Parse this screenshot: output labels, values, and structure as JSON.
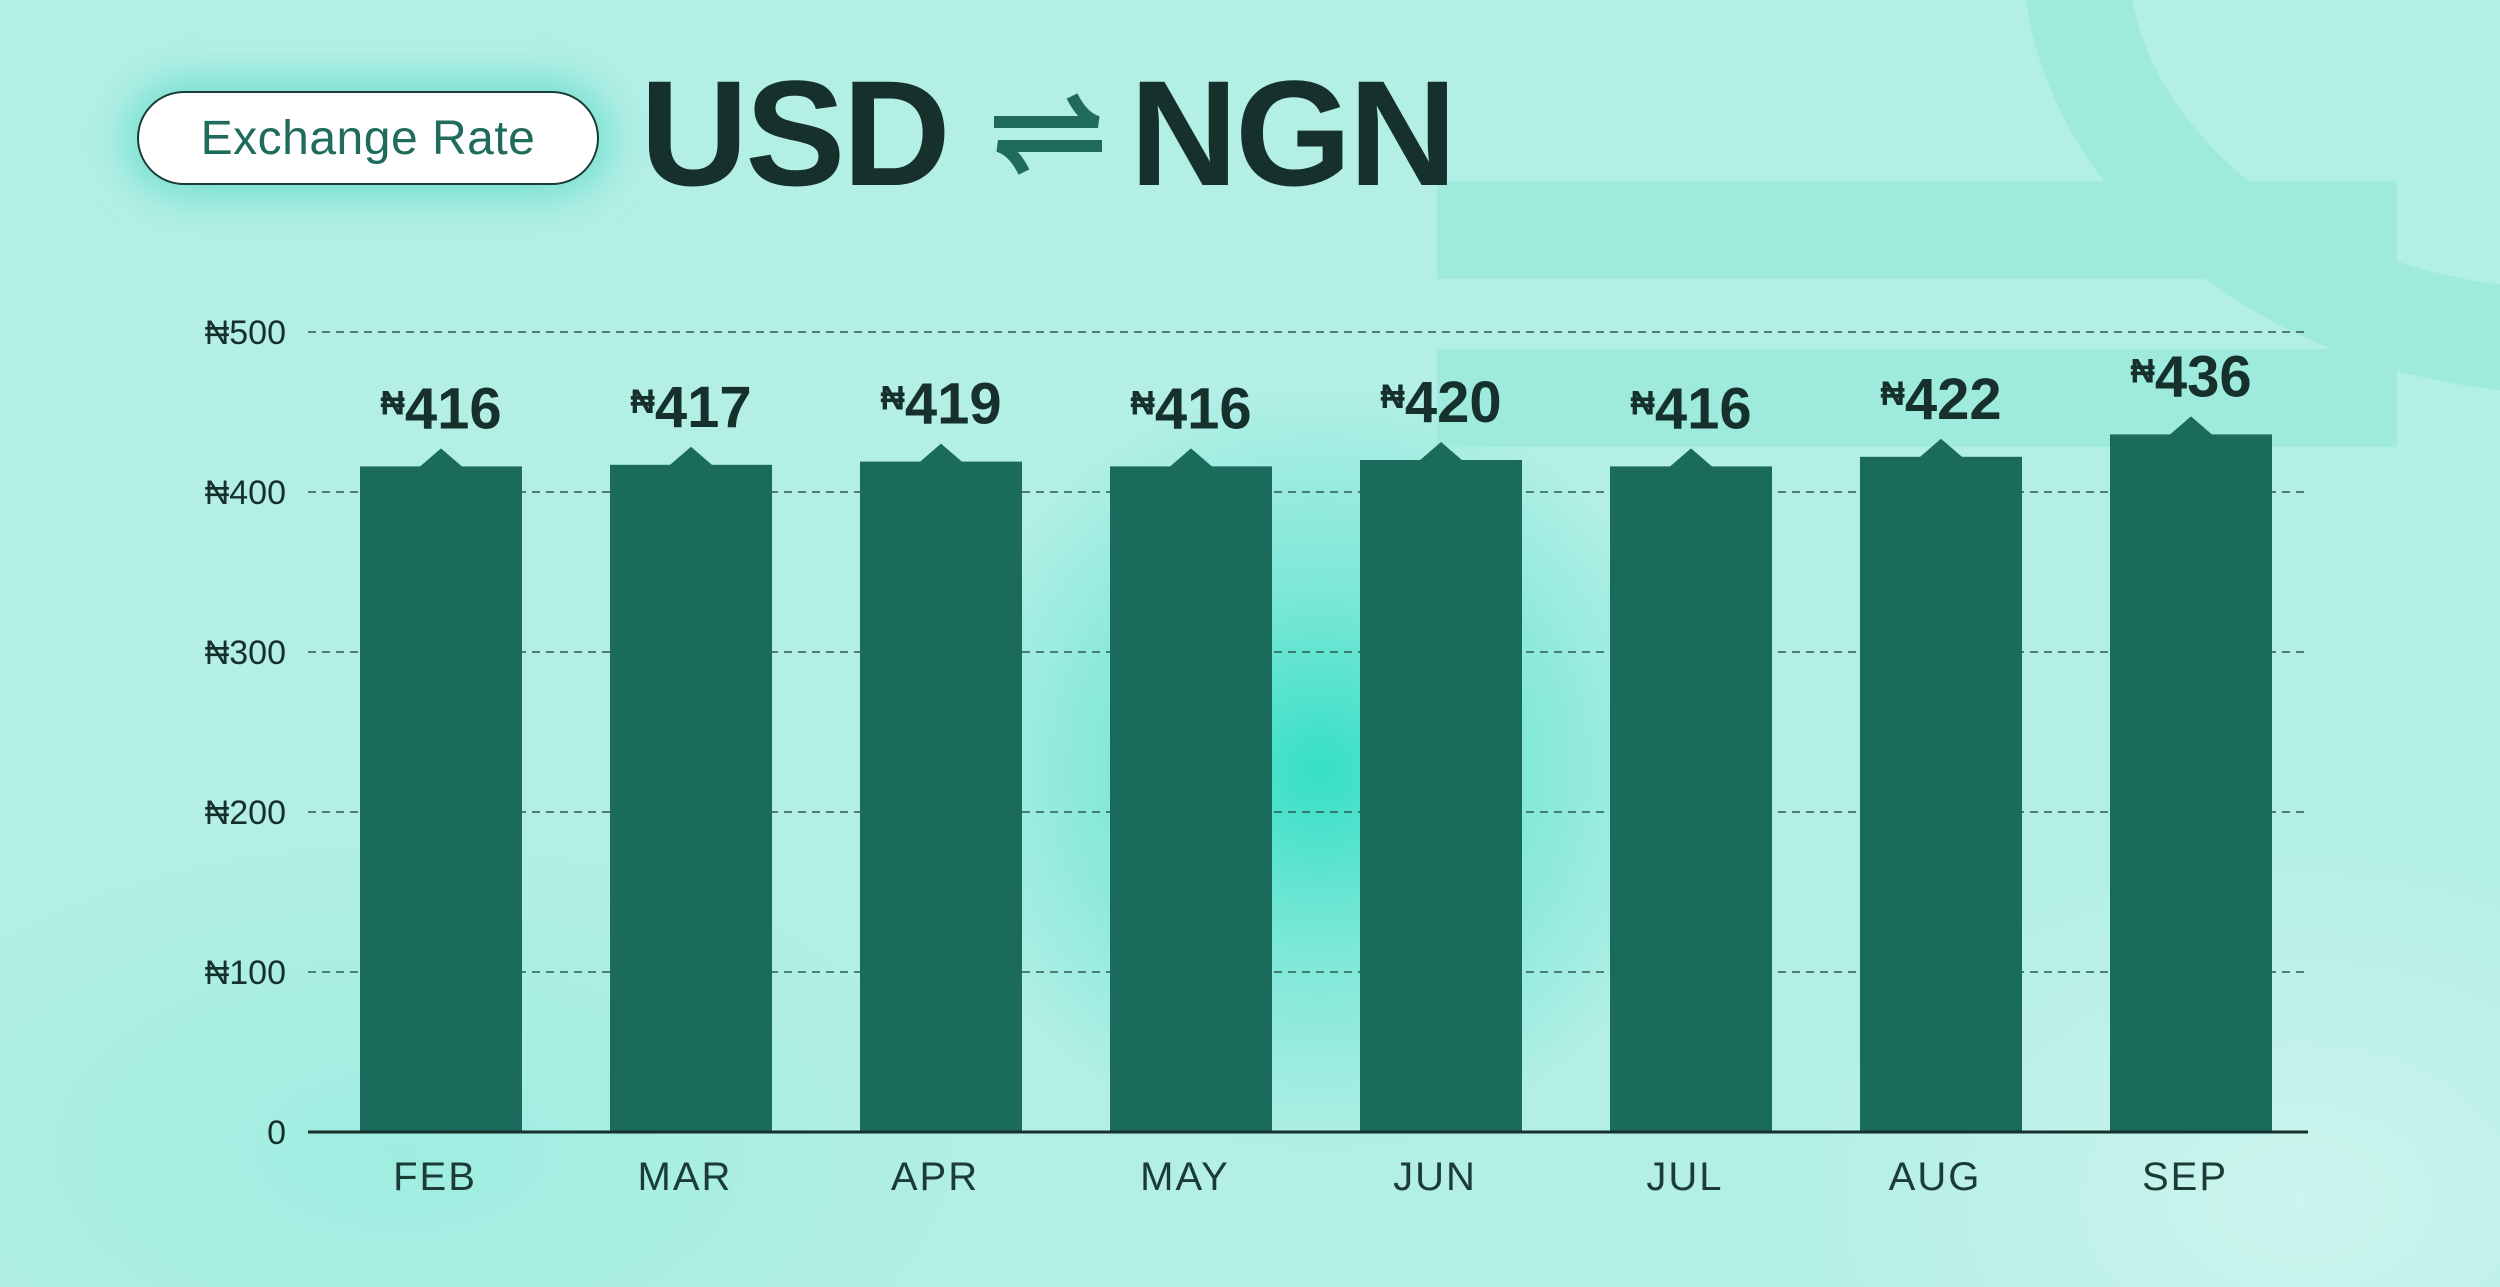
{
  "header": {
    "badge": "Exchange Rate",
    "from": "USD",
    "to": "NGN"
  },
  "colors": {
    "background": "#b4efe6",
    "bar": "#1b6b5c",
    "text": "#16302c",
    "accent": "#1f6b5c"
  },
  "icons": {
    "swap": "swap-arrows-icon"
  },
  "chart_data": {
    "type": "bar",
    "categories": [
      "FEB",
      "MAR",
      "APR",
      "MAY",
      "JUN",
      "JUL",
      "AUG",
      "SEP"
    ],
    "values": [
      416,
      417,
      419,
      416,
      420,
      416,
      422,
      436
    ],
    "value_labels": [
      "₦416",
      "₦417",
      "₦419",
      "₦416",
      "₦420",
      "₦416",
      "₦422",
      "₦436"
    ],
    "currency_symbol": "₦",
    "yticks": [
      0,
      100,
      200,
      300,
      400,
      500
    ],
    "ytick_labels": [
      "0",
      "₦100",
      "₦200",
      "₦300",
      "₦400",
      "₦500"
    ],
    "ylim": [
      0,
      500
    ],
    "grid": true,
    "title": "",
    "xlabel": "",
    "ylabel": ""
  }
}
